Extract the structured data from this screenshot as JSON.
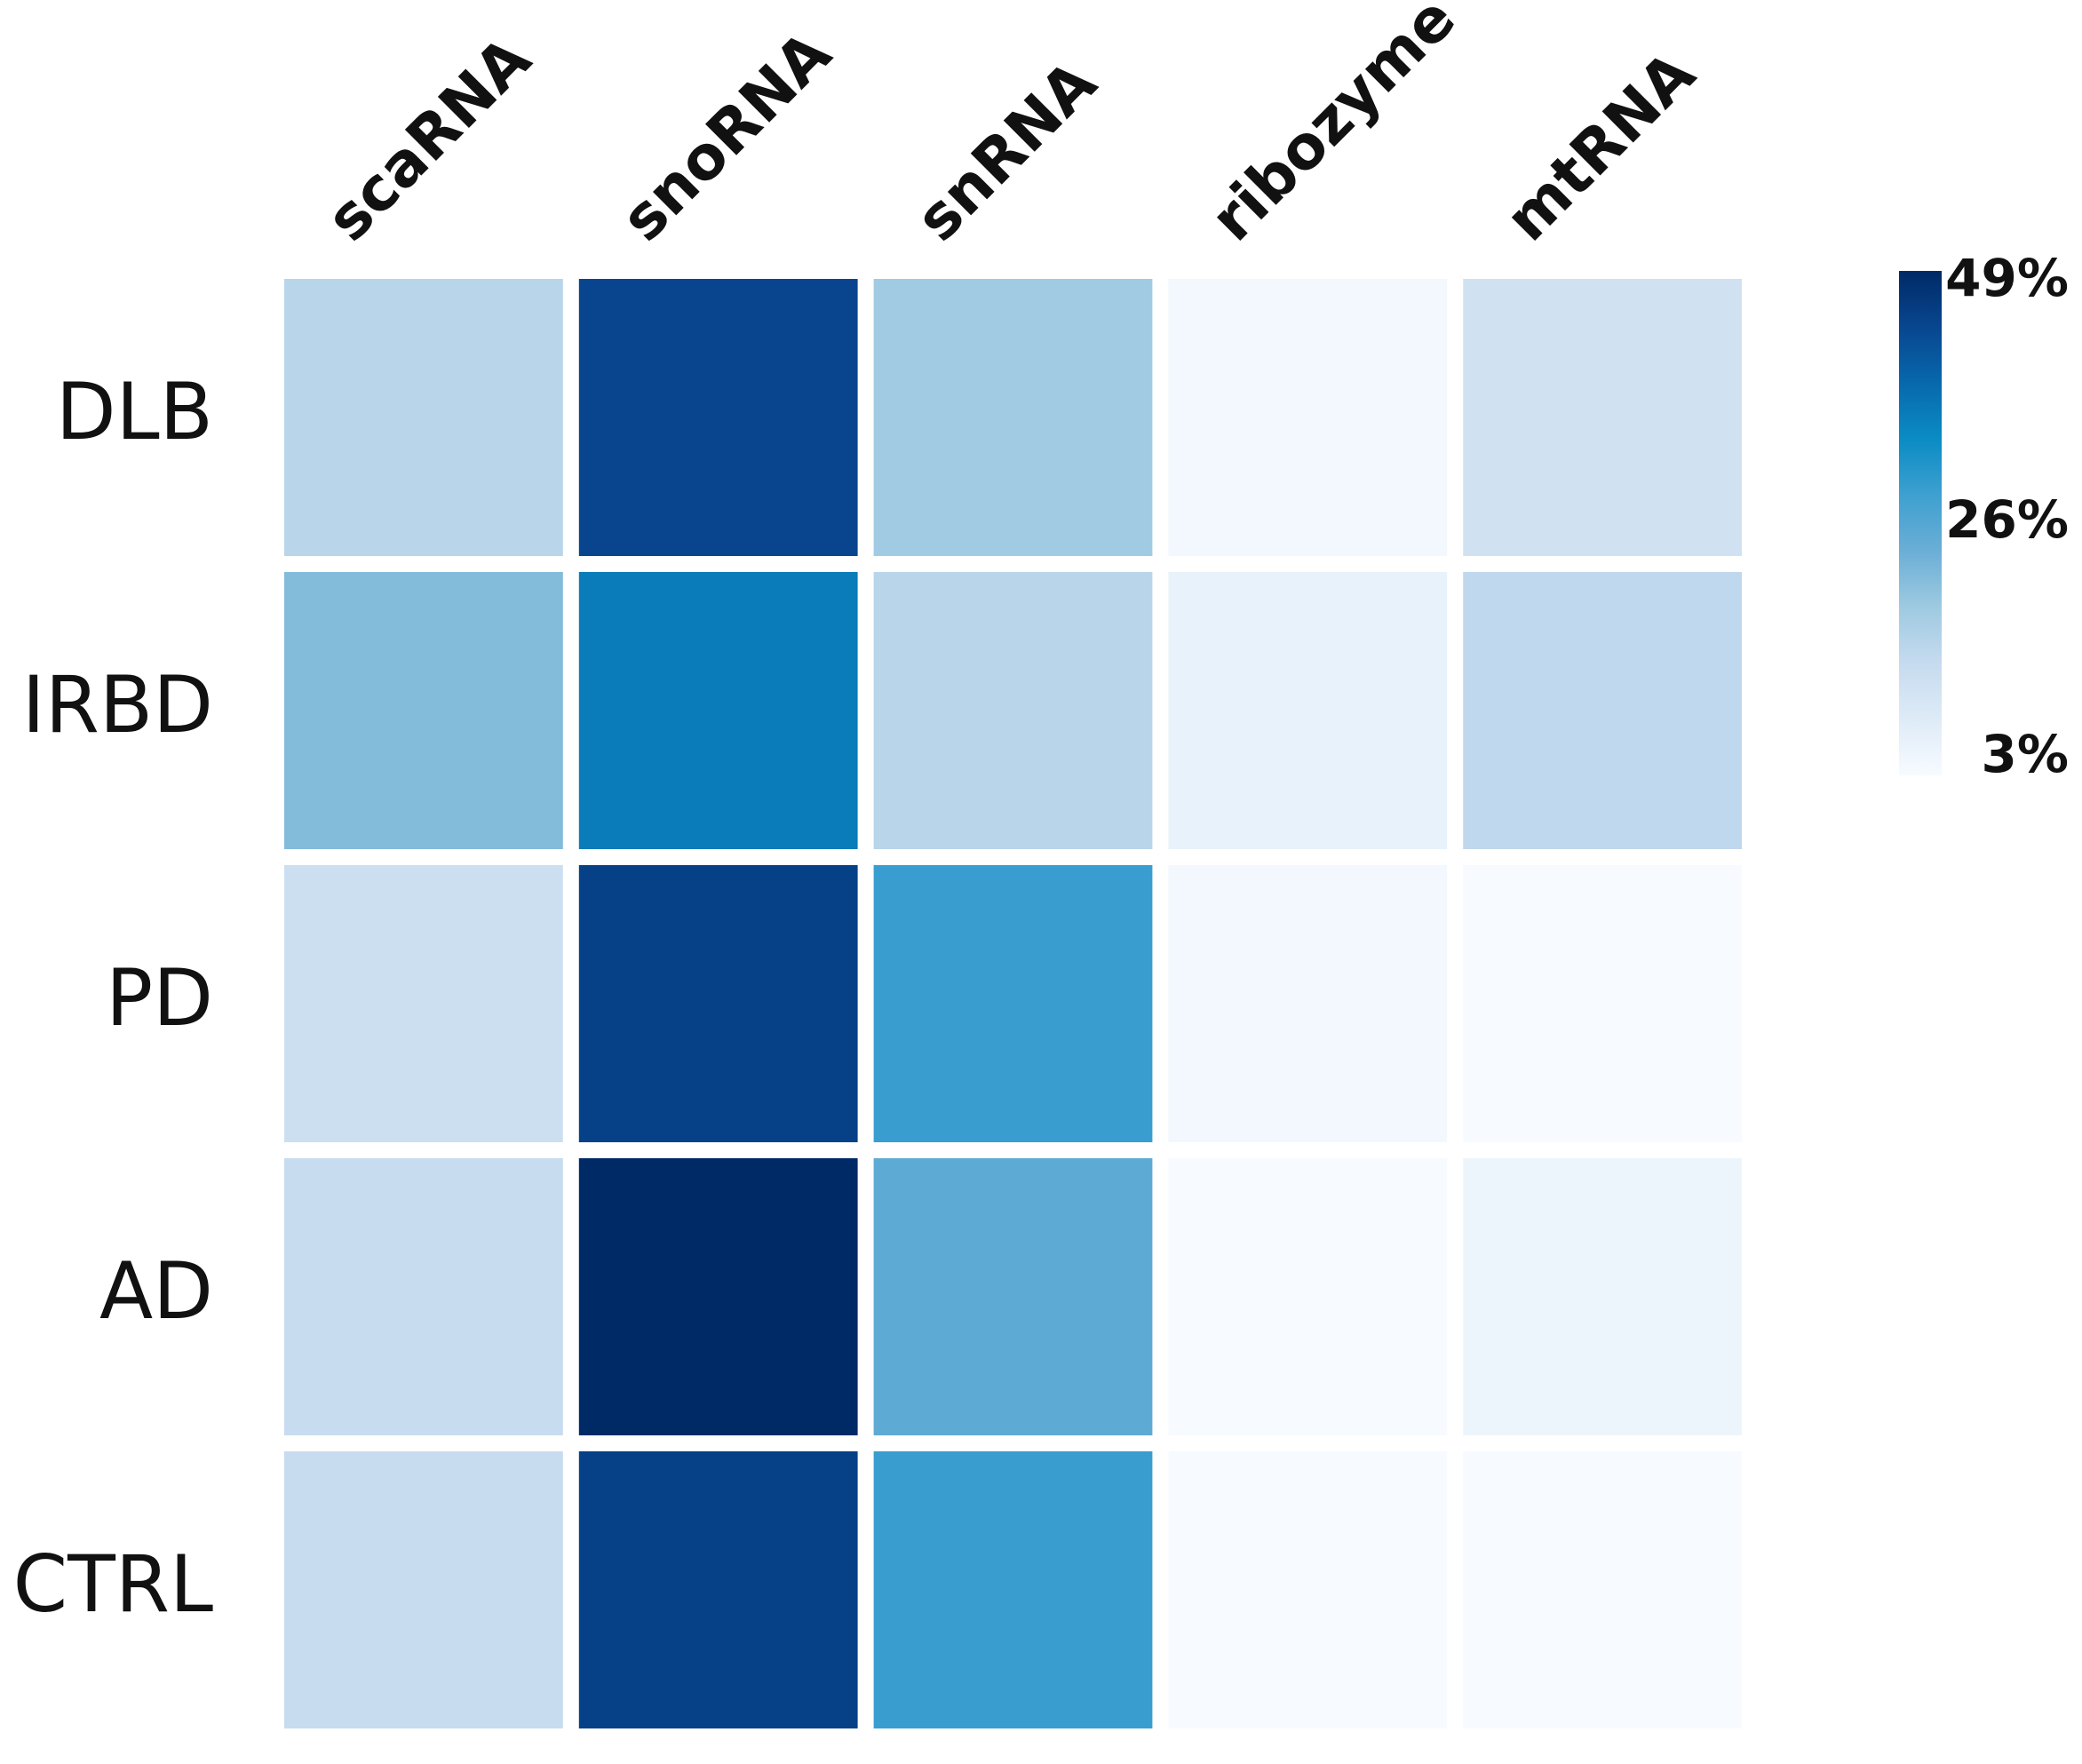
{
  "chart_data": {
    "type": "heatmap",
    "columns": [
      "scaRNA",
      "snoRNA",
      "snRNA",
      "ribozyme",
      "mtRNA"
    ],
    "rows": [
      "DLB",
      "IRBD",
      "PD",
      "AD",
      "CTRL"
    ],
    "values": [
      [
        15,
        44,
        18,
        4,
        11
      ],
      [
        21,
        36,
        15,
        6,
        14
      ],
      [
        12,
        45,
        29,
        4,
        3
      ],
      [
        13,
        49,
        25,
        3,
        5
      ],
      [
        13,
        45,
        29,
        3,
        3
      ]
    ],
    "clim": [
      3,
      49
    ],
    "cticks": [
      {
        "value": 3,
        "label": "3%"
      },
      {
        "value": 26,
        "label": "26%"
      },
      {
        "value": 49,
        "label": "49%"
      }
    ],
    "colors": [
      "#f7fbff",
      "#deebf7",
      "#c6dbef",
      "#9ecae1",
      "#6baed6",
      "#3ea0d0",
      "#0a8cc4",
      "#0868ac",
      "#08468f",
      "#002a66"
    ]
  }
}
